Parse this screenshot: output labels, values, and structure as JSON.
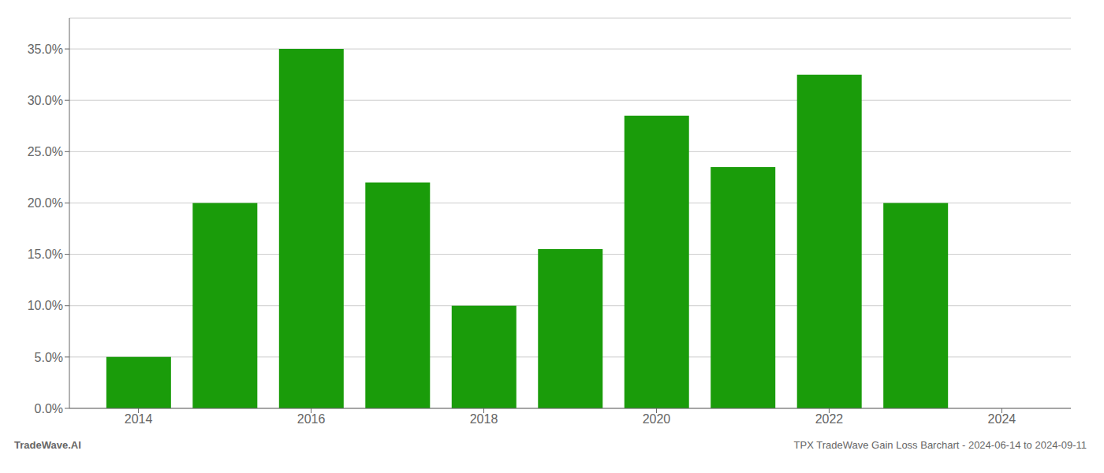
{
  "chart_data": {
    "type": "bar",
    "x": [
      2014,
      2015,
      2016,
      2017,
      2018,
      2019,
      2020,
      2021,
      2022,
      2023
    ],
    "values": [
      0.05,
      0.2,
      0.35,
      0.22,
      0.1,
      0.155,
      0.285,
      0.235,
      0.325,
      0.2
    ],
    "color": "#1a9c0a",
    "xlim": [
      2013.2,
      2024.8
    ],
    "xticks": [
      2014,
      2016,
      2018,
      2020,
      2022,
      2024
    ],
    "ylim": [
      0,
      0.38
    ],
    "yticks": [
      {
        "value": 0.0,
        "label": "0.0%"
      },
      {
        "value": 0.05,
        "label": "5.0%"
      },
      {
        "value": 0.1,
        "label": "10.0%"
      },
      {
        "value": 0.15,
        "label": "15.0%"
      },
      {
        "value": 0.2,
        "label": "20.0%"
      },
      {
        "value": 0.25,
        "label": "25.0%"
      },
      {
        "value": 0.3,
        "label": "30.0%"
      },
      {
        "value": 0.35,
        "label": "35.0%"
      }
    ],
    "grid": "y",
    "annotations": [
      "TradeWave.AI",
      "TPX TradeWave Gain Loss Barchart - 2024-06-14 to 2024-09-11"
    ]
  }
}
